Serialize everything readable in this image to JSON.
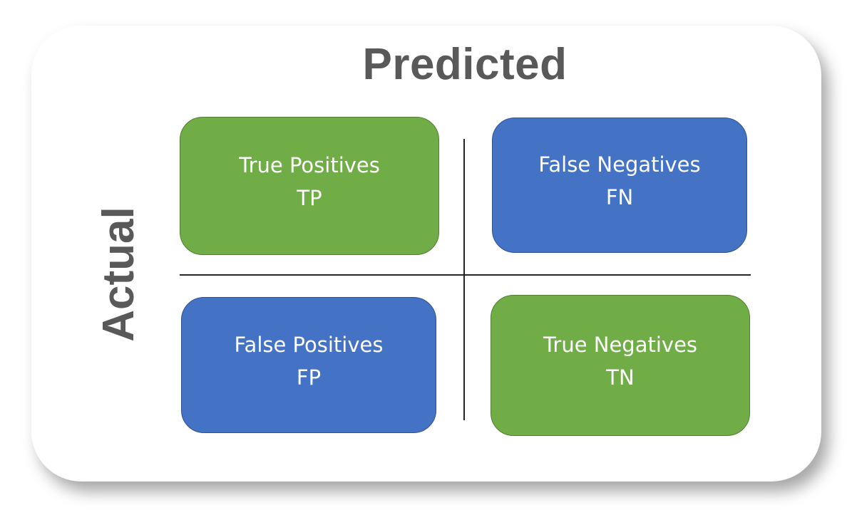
{
  "axes": {
    "column_label": "Predicted",
    "row_label": "Actual"
  },
  "colors": {
    "positive_cell": "#70ad47",
    "negative_cell": "#4472c4",
    "axis_text": "#595959",
    "divider": "#262626"
  },
  "cells": [
    {
      "label": "True Positives",
      "abbr": "TP",
      "color": "green"
    },
    {
      "label": "False Negatives",
      "abbr": "FN",
      "color": "blue"
    },
    {
      "label": "False Positives",
      "abbr": "FP",
      "color": "blue"
    },
    {
      "label": "True Negatives",
      "abbr": "TN",
      "color": "green"
    }
  ]
}
